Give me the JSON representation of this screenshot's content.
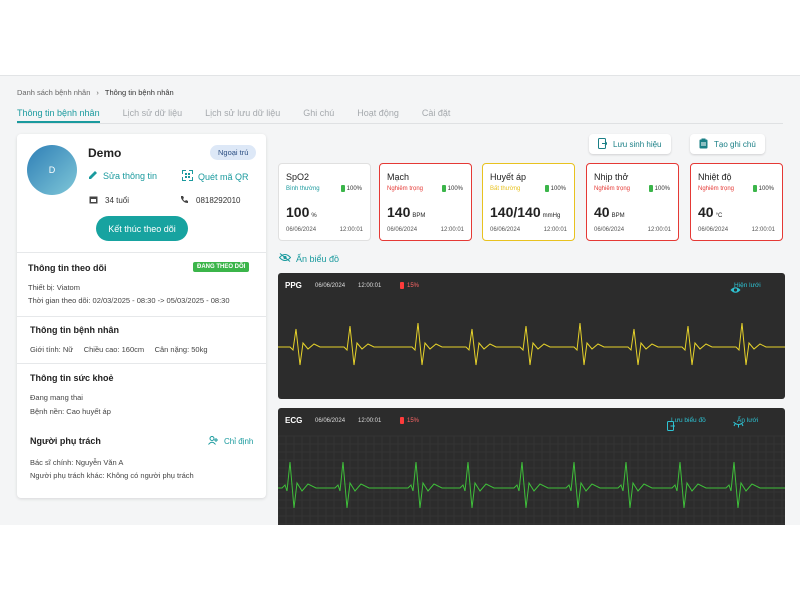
{
  "breadcrumb": {
    "parent": "Danh sách bệnh nhân",
    "separator": "›",
    "current": "Thông tin bệnh nhân"
  },
  "tabs": [
    {
      "label": "Thông tin bệnh nhân",
      "active": true
    },
    {
      "label": "Lịch sử dữ liệu",
      "active": false
    },
    {
      "label": "Lịch sử lưu dữ liệu",
      "active": false
    },
    {
      "label": "Ghi chú",
      "active": false
    },
    {
      "label": "Hoạt động",
      "active": false
    },
    {
      "label": "Cài đặt",
      "active": false
    }
  ],
  "patient": {
    "avatar_initial": "D",
    "name": "Demo",
    "type_badge": "Ngoại trú",
    "edit_label": "Sửa thông tin",
    "qr_label": "Quét mã QR",
    "age": "34 tuổi",
    "phone": "0818292010",
    "end_button": "Kết thúc theo dõi"
  },
  "monitoring": {
    "title": "Thông tin theo dõi",
    "status": "ĐANG THEO DÕI",
    "device": "Thiết bị: Viatom",
    "period": "Thời gian theo dõi: 02/03/2025 - 08:30  ->  05/03/2025 - 08:30"
  },
  "patient_info": {
    "title": "Thông tin bệnh nhân",
    "details": "Giới tính: Nữ     Chiều cao: 160cm     Cân nặng: 50kg"
  },
  "health": {
    "title": "Thông tin sức khoẻ",
    "line1": "Đang mang thai",
    "line2": "Bệnh nền: Cao huyết áp"
  },
  "responsible": {
    "title": "Người phụ trách",
    "assign_label": "Chỉ định",
    "doctor": "Bác sĩ chính: Nguyễn Văn A",
    "other": "Người phụ trách khác: Không có người phụ trách"
  },
  "actions": {
    "save_vitals": "Lưu sinh hiệu",
    "create_note": "Tạo ghi chú"
  },
  "vitals": [
    {
      "title": "SpO2",
      "status": "Bình thường",
      "status_color": "#1a9a9e",
      "border": "#e0e0e0",
      "battery": "100%",
      "value": "100",
      "unit": "%",
      "date": "06/06/2024",
      "time": "12:00:01"
    },
    {
      "title": "Mạch",
      "status": "Nghiêm trọng",
      "status_color": "#e53935",
      "border": "#e53935",
      "battery": "100%",
      "value": "140",
      "unit": "BPM",
      "date": "06/06/2024",
      "time": "12:00:01"
    },
    {
      "title": "Huyết áp",
      "status": "Bất thường",
      "status_color": "#e8c21f",
      "border": "#e8c21f",
      "battery": "100%",
      "value": "140/140",
      "unit": "mmHg",
      "date": "06/06/2024",
      "time": "12:00:01"
    },
    {
      "title": "Nhịp thở",
      "status": "Nghiêm trọng",
      "status_color": "#e53935",
      "border": "#e53935",
      "battery": "100%",
      "value": "40",
      "unit": "BPM",
      "date": "06/06/2024",
      "time": "12:00:01"
    },
    {
      "title": "Nhiệt độ",
      "status": "Nghiêm trọng",
      "status_color": "#e53935",
      "border": "#e53935",
      "battery": "100%",
      "value": "40",
      "unit": "°C",
      "date": "06/06/2024",
      "time": "12:00:01"
    }
  ],
  "hide_chart_label": "Ẩn biểu đồ",
  "waveforms": {
    "ppg": {
      "label": "PPG",
      "date": "06/06/2024",
      "time": "12:00:01",
      "battery": "15%",
      "action": "Hiện lưới",
      "color": "#e6d22a"
    },
    "ecg": {
      "label": "ECG",
      "date": "06/06/2024",
      "time": "12:00:01",
      "battery": "15%",
      "save_action": "Lưu biểu đồ",
      "hide_action": "Ẩn lưới",
      "color": "#3fbf3a"
    }
  }
}
